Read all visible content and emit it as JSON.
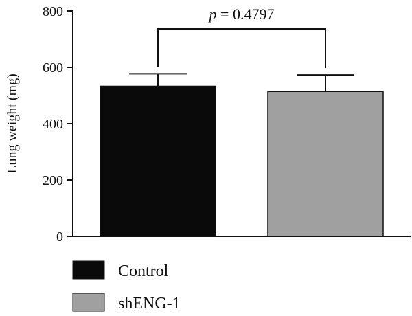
{
  "chart_data": {
    "type": "bar",
    "categories": [
      "Control",
      "shENG-1"
    ],
    "series": [
      {
        "name": "Lung weight",
        "values": [
          533,
          514
        ],
        "errors": [
          44,
          59
        ],
        "colors": [
          "#0a0a0a",
          "#a0a0a0"
        ]
      }
    ],
    "ylabel": "Lung weight (mg)",
    "xlabel": "",
    "title": "",
    "ylim": [
      0,
      800
    ],
    "yticks": [
      0,
      200,
      400,
      600,
      800
    ],
    "grid": false,
    "legend": {
      "placement": "bottom-left",
      "entries": [
        {
          "label": "Control",
          "color": "#0a0a0a"
        },
        {
          "label": "shENG-1",
          "color": "#a0a0a0"
        }
      ]
    },
    "annotation": {
      "p_symbol": "p",
      "p_rest": " = 0.4797",
      "between": [
        "Control",
        "shENG-1"
      ]
    }
  }
}
